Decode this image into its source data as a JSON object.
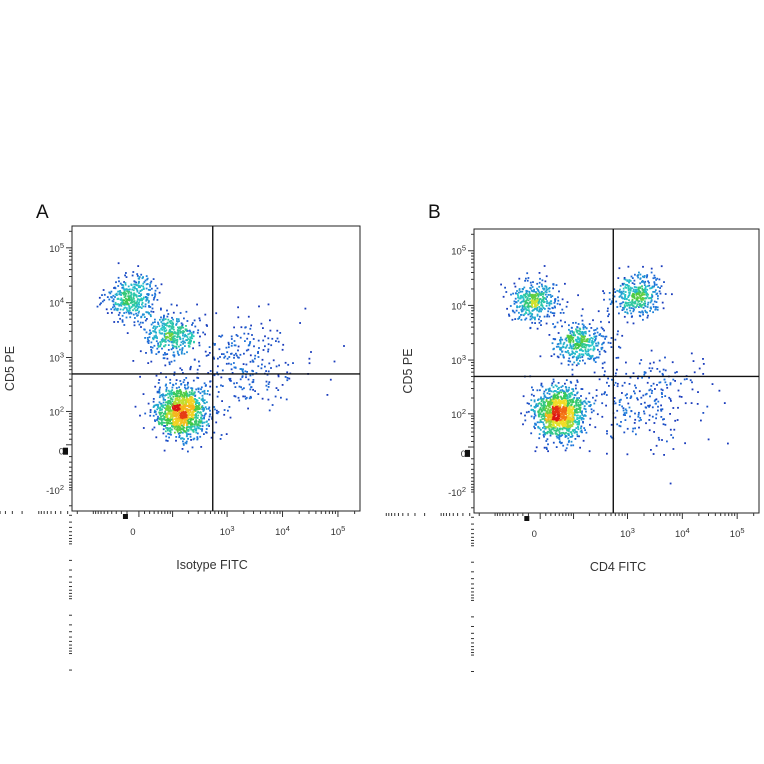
{
  "figure": {
    "panels": [
      {
        "letter": "A"
      },
      {
        "letter": "B"
      }
    ]
  },
  "chart_data": [
    {
      "type": "scatter",
      "panel": "A",
      "title": "",
      "xlabel": "Isotype FITC",
      "ylabel": "CD5 PE",
      "x_scale": "biexponential",
      "y_scale": "biexponential",
      "x_tick_labels": [
        "0",
        "10^3",
        "10^4",
        "10^5"
      ],
      "y_tick_labels": [
        "10^5",
        "10^4",
        "10^3",
        "10^2",
        "0",
        "-10^2"
      ],
      "quadrant_gate": {
        "x": 550,
        "y": 500
      },
      "colormap": "density: blue (low) → cyan → green → yellow → red (high)",
      "populations": [
        {
          "name": "CD5 low, FITC negative",
          "x_center": 150,
          "y_center": 100,
          "density": "highest"
        },
        {
          "name": "CD5 high, FITC negative",
          "x_center": 0,
          "y_center": 12000,
          "density": "medium"
        },
        {
          "name": "CD5 intermediate, FITC negative",
          "x_center": 100,
          "y_center": 2500,
          "density": "medium"
        },
        {
          "name": "FITC positive scatter",
          "x_center": 2000,
          "y_center": 800,
          "density": "low"
        }
      ],
      "grid": false,
      "legend": false
    },
    {
      "type": "scatter",
      "panel": "B",
      "title": "",
      "xlabel": "CD4 FITC",
      "ylabel": "CD5 PE",
      "x_scale": "biexponential",
      "y_scale": "biexponential",
      "x_tick_labels": [
        "0",
        "10^3",
        "10^4",
        "10^5"
      ],
      "y_tick_labels": [
        "10^5",
        "10^4",
        "10^3",
        "10^2",
        "0",
        "-10^2"
      ],
      "quadrant_gate": {
        "x": 550,
        "y": 500
      },
      "colormap": "density: blue (low) → cyan → green → yellow → red (high)",
      "populations": [
        {
          "name": "CD5 low, CD4 negative",
          "x_center": 50,
          "y_center": 100,
          "density": "highest"
        },
        {
          "name": "CD5 high, CD4 negative",
          "x_center": 0,
          "y_center": 12000,
          "density": "medium"
        },
        {
          "name": "CD5 intermediate, CD4 negative",
          "x_center": 150,
          "y_center": 2000,
          "density": "medium"
        },
        {
          "name": "CD5 high, CD4 positive",
          "x_center": 1500,
          "y_center": 15000,
          "density": "medium"
        },
        {
          "name": "CD5 low, CD4 positive",
          "x_center": 2000,
          "y_center": 200,
          "density": "low"
        }
      ],
      "grid": false,
      "legend": false
    }
  ]
}
